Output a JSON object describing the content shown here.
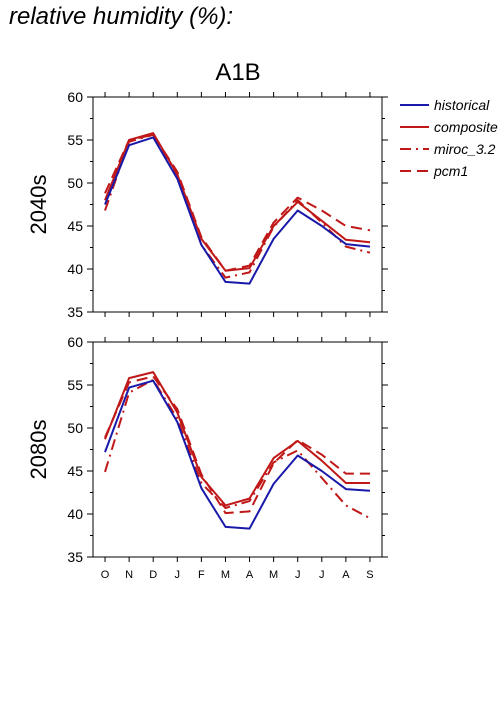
{
  "header": {
    "title": "relative humidity (%):"
  },
  "colors": {
    "historical": "#1a1aaa",
    "projected": "#c01818",
    "axis": "#000000"
  },
  "chart_data": {
    "type": "line",
    "title": "A1B",
    "categories": [
      "O",
      "N",
      "D",
      "J",
      "F",
      "M",
      "A",
      "M",
      "J",
      "J",
      "A",
      "S"
    ],
    "ylim": [
      35,
      60
    ],
    "yticks": [
      35,
      40,
      45,
      50,
      55,
      60
    ],
    "grid": false,
    "legend_position": "top-right",
    "legend": [
      {
        "label": "historical",
        "color": "#1a1aaa",
        "style": "solid"
      },
      {
        "label": "composite",
        "color": "#c01818",
        "style": "solid"
      },
      {
        "label": "miroc_3.2",
        "color": "#c01818",
        "style": "dashdot"
      },
      {
        "label": "pcm1",
        "color": "#c01818",
        "style": "dashed"
      }
    ],
    "panels": [
      {
        "label": "2040s",
        "series": [
          {
            "name": "historical",
            "values": [
              47.5,
              54.4,
              55.3,
              50.5,
              42.8,
              38.5,
              38.3,
              43.5,
              46.8,
              45.0,
              42.9,
              42.6
            ]
          },
          {
            "name": "composite",
            "values": [
              48.0,
              55.0,
              55.8,
              51.0,
              43.5,
              39.8,
              40.1,
              45.0,
              47.8,
              45.6,
              43.4,
              43.1
            ]
          },
          {
            "name": "miroc_3.2",
            "values": [
              46.8,
              54.8,
              55.6,
              50.7,
              42.8,
              39.0,
              39.6,
              44.9,
              48.0,
              45.4,
              42.6,
              41.9
            ]
          },
          {
            "name": "pcm1",
            "values": [
              48.8,
              55.0,
              55.6,
              51.3,
              43.7,
              39.8,
              40.4,
              45.4,
              48.3,
              46.8,
              45.0,
              44.5
            ]
          }
        ]
      },
      {
        "label": "2080s",
        "series": [
          {
            "name": "historical",
            "values": [
              47.2,
              54.7,
              55.5,
              50.7,
              43.0,
              38.5,
              38.3,
              43.5,
              46.8,
              45.0,
              42.9,
              42.7
            ]
          },
          {
            "name": "composite",
            "values": [
              48.7,
              55.8,
              56.5,
              51.8,
              44.3,
              41.0,
              41.8,
              46.5,
              48.5,
              46.2,
              43.6,
              43.6
            ]
          },
          {
            "name": "miroc_3.2",
            "values": [
              44.9,
              54.1,
              55.6,
              51.1,
              43.6,
              40.7,
              41.5,
              46.0,
              47.4,
              44.2,
              41.0,
              39.5
            ]
          },
          {
            "name": "pcm1",
            "values": [
              48.9,
              55.3,
              56.0,
              52.2,
              44.6,
              40.1,
              40.3,
              45.9,
              48.6,
              46.9,
              44.7,
              44.7
            ]
          }
        ]
      }
    ]
  }
}
